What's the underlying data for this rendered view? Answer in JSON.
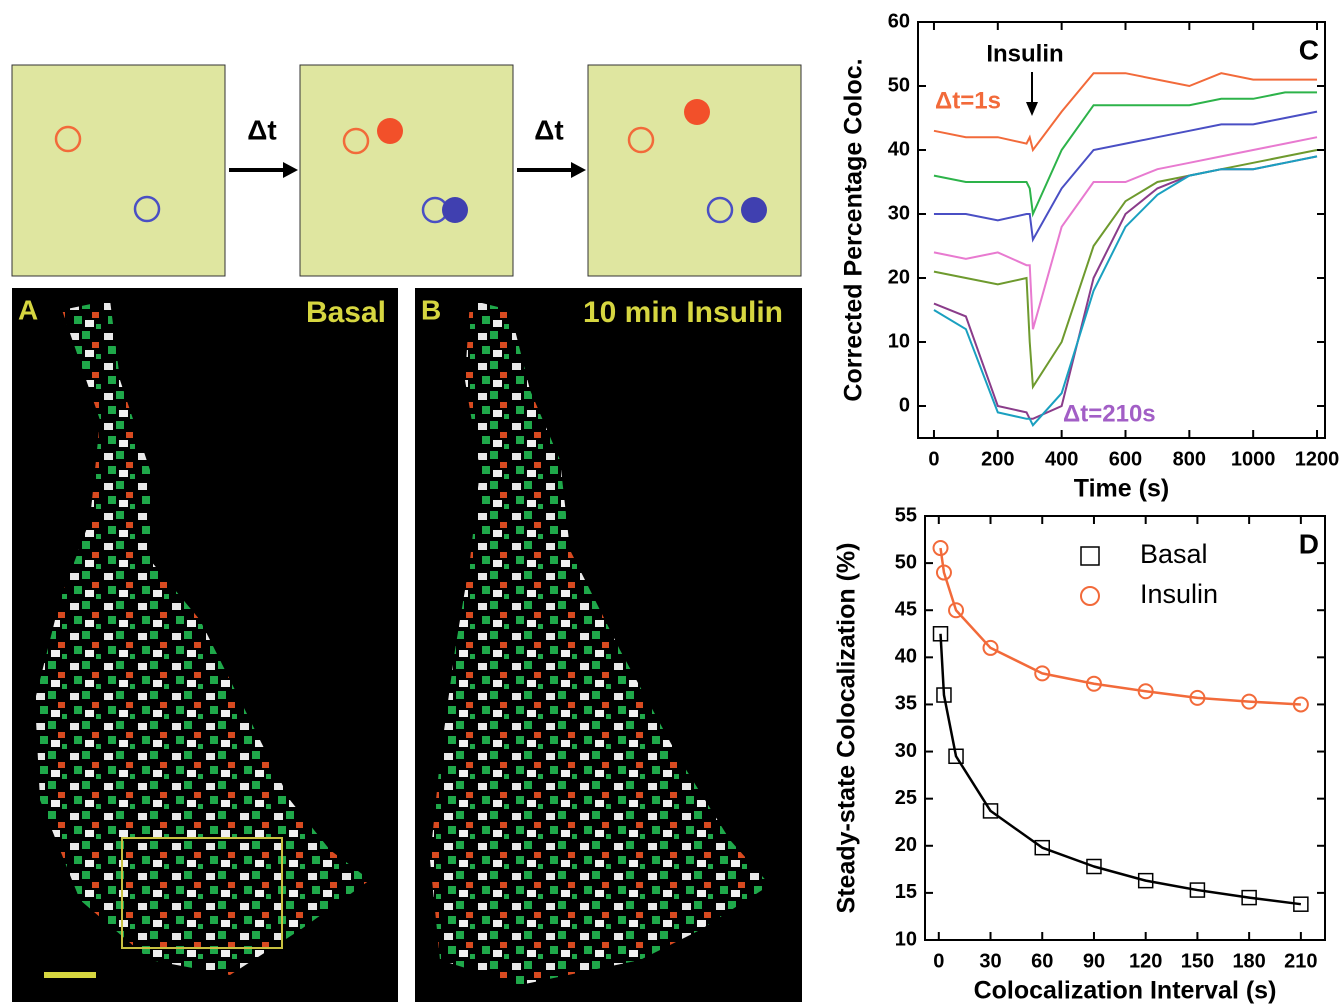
{
  "schematic": {
    "arrows": [
      "Δt",
      "Δt"
    ]
  },
  "panel_a": {
    "label": "A",
    "title": "Basal"
  },
  "panel_b": {
    "label": "B",
    "title": "10 min Insulin"
  },
  "chart_data": [
    {
      "type": "line",
      "panel_label": "C",
      "xlabel": "Time (s)",
      "ylabel": "Corrected Percentage Coloc.",
      "annotations": [
        {
          "text": "Insulin",
          "color": "#000000"
        },
        {
          "text": "Δt=1s",
          "color": "#f26a3a"
        },
        {
          "text": "Δt=210s",
          "color": "#a25ec6"
        }
      ],
      "x": [
        0,
        100,
        200,
        290,
        300,
        310,
        400,
        500,
        600,
        700,
        800,
        900,
        1000,
        1100,
        1200
      ],
      "series": [
        {
          "color": "#f26a3a",
          "values": [
            43,
            42,
            42,
            41,
            42,
            40,
            46,
            52,
            52,
            51,
            50,
            52,
            51,
            51,
            51
          ]
        },
        {
          "color": "#2db34a",
          "values": [
            36,
            35,
            35,
            35,
            34,
            30,
            40,
            47,
            47,
            47,
            47,
            48,
            48,
            49,
            49
          ]
        },
        {
          "color": "#4a4fc4",
          "values": [
            30,
            30,
            29,
            30,
            30,
            26,
            34,
            40,
            41,
            42,
            43,
            44,
            44,
            45,
            46
          ]
        },
        {
          "color": "#e87ad0",
          "values": [
            24,
            23,
            24,
            22,
            22,
            12,
            28,
            35,
            35,
            37,
            38,
            39,
            40,
            41,
            42
          ]
        },
        {
          "color": "#6e9a2e",
          "values": [
            21,
            20,
            19,
            20,
            10,
            3,
            10,
            25,
            32,
            35,
            36,
            37,
            38,
            39,
            40
          ]
        },
        {
          "color": "#8a3c8a",
          "values": [
            16,
            14,
            0,
            -1,
            -2,
            -2,
            0,
            20,
            30,
            34,
            36,
            37,
            37,
            38,
            39
          ]
        },
        {
          "color": "#1aa0c0",
          "values": [
            15,
            12,
            -1,
            -2,
            -2,
            -3,
            2,
            18,
            28,
            33,
            36,
            37,
            37,
            38,
            39
          ]
        }
      ],
      "xlim": [
        -50,
        1225
      ],
      "xticks": [
        0,
        200,
        400,
        600,
        800,
        1000,
        1200
      ],
      "ylim": [
        -5,
        60
      ],
      "yticks": [
        0,
        10,
        20,
        30,
        40,
        50,
        60
      ]
    },
    {
      "type": "scatter",
      "panel_label": "D",
      "xlabel": "Colocalization Interval (s)",
      "ylabel": "Steady-state Colocalization (%)",
      "legend": "upper right",
      "x": [
        1,
        3,
        10,
        30,
        60,
        90,
        120,
        150,
        180,
        210
      ],
      "series": [
        {
          "name": "Basal",
          "color": "#000000",
          "marker": "square",
          "values": [
            42.5,
            36,
            29.5,
            23.7,
            19.8,
            17.8,
            16.3,
            15.3,
            14.5,
            13.8
          ]
        },
        {
          "name": "Insulin",
          "color": "#f26a3a",
          "marker": "circle",
          "values": [
            51.6,
            49,
            45,
            41,
            38.3,
            37.2,
            36.4,
            35.7,
            35.3,
            35
          ]
        }
      ],
      "xlim": [
        -8,
        224
      ],
      "xticks": [
        0,
        30,
        60,
        90,
        120,
        150,
        180,
        210
      ],
      "ylim": [
        10,
        55
      ],
      "yticks": [
        10,
        15,
        20,
        25,
        30,
        35,
        40,
        45,
        50,
        55
      ]
    }
  ]
}
